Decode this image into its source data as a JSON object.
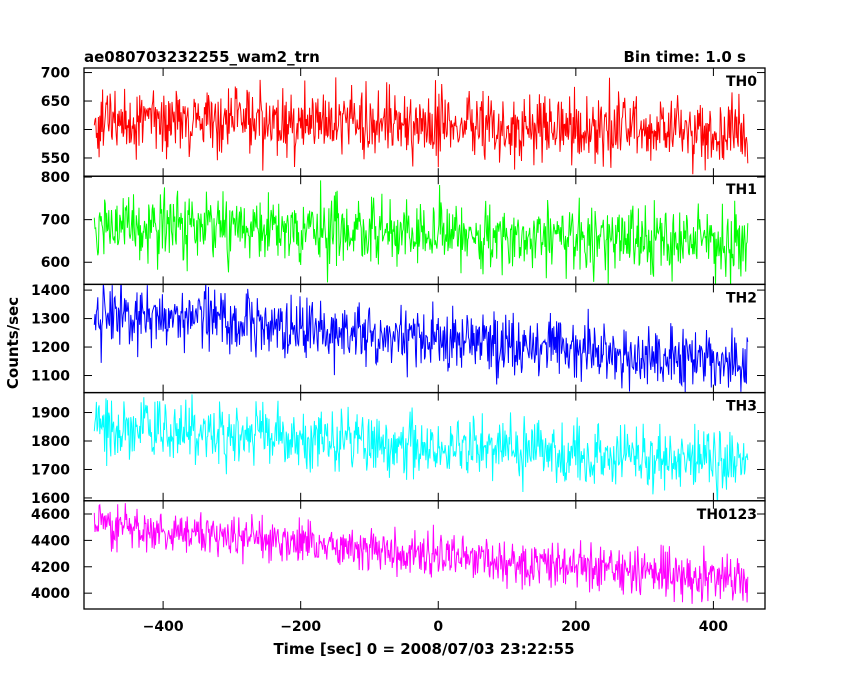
{
  "chart_data": {
    "type": "line",
    "title": "ae080703232255_wam2_trn",
    "bin_time": "Bin time: 1.0 s",
    "xlabel": "Time [sec] 0 = 2008/07/03 23:22:55",
    "ylabel": "Counts/sec",
    "xlim": [
      -515,
      475
    ],
    "x_ticks": [
      -400,
      -200,
      0,
      200,
      400
    ],
    "x_tick_labels": [
      "−400",
      "−200",
      "0",
      "200",
      "400"
    ],
    "x_range": [
      -500,
      450
    ],
    "bin_seconds": 1,
    "panels": [
      {
        "name": "TH0",
        "color": "#ff0000",
        "ylim": [
          518,
          708
        ],
        "yticks": [
          550,
          600,
          650,
          700
        ],
        "start": 618,
        "end": 592,
        "noise": 32
      },
      {
        "name": "TH1",
        "color": "#00ff00",
        "ylim": [
          548,
          802
        ],
        "yticks": [
          600,
          700,
          800
        ],
        "start": 690,
        "end": 640,
        "noise": 40
      },
      {
        "name": "TH2",
        "color": "#0000ff",
        "ylim": [
          1040,
          1420
        ],
        "yticks": [
          1100,
          1200,
          1300,
          1400
        ],
        "start": 1320,
        "end": 1140,
        "noise": 55
      },
      {
        "name": "TH3",
        "color": "#00ffff",
        "ylim": [
          1590,
          1970
        ],
        "yticks": [
          1600,
          1700,
          1800,
          1900
        ],
        "start": 1850,
        "end": 1720,
        "noise": 55
      },
      {
        "name": "TH0123",
        "color": "#ff00ff",
        "ylim": [
          3880,
          4700
        ],
        "yticks": [
          4000,
          4200,
          4400,
          4600
        ],
        "start": 4520,
        "end": 4080,
        "noise": 85
      }
    ]
  }
}
